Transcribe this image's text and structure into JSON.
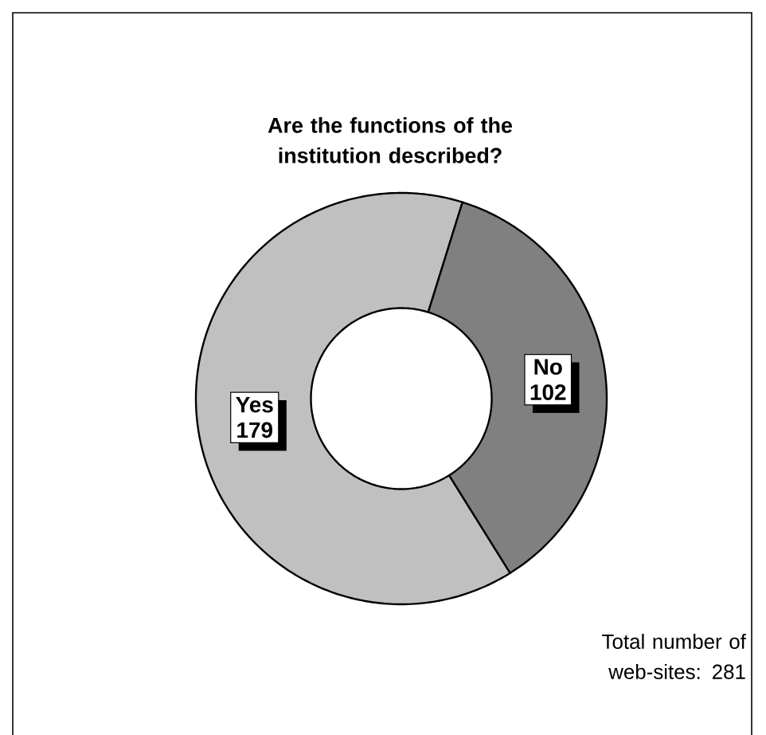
{
  "chart_data": {
    "type": "donut",
    "title": "Are the functions of the institution described?",
    "categories": [
      "Yes",
      "No"
    ],
    "values": [
      179,
      102
    ],
    "colors": [
      "#c0c0c0",
      "#808080"
    ],
    "value_labels": [
      "179",
      "102"
    ],
    "annotations": [
      "Total number of web-sites: 281"
    ]
  }
}
